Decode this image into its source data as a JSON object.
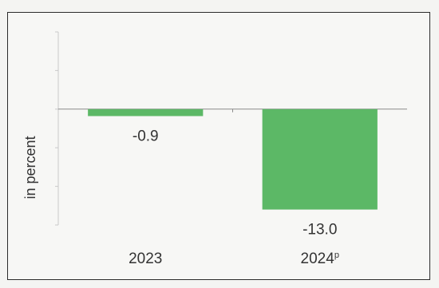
{
  "chart_data": {
    "type": "bar",
    "categories": [
      "2023",
      "2024"
    ],
    "category_superscripts": [
      "",
      "p"
    ],
    "values": [
      -0.9,
      -13.0
    ],
    "data_labels": [
      "-0.9",
      "-13.0"
    ],
    "title": "",
    "xlabel": "",
    "ylabel": "in percent",
    "ylim": [
      -15,
      10
    ],
    "bar_color": "#5cb866",
    "grid": false,
    "legend": "none"
  }
}
